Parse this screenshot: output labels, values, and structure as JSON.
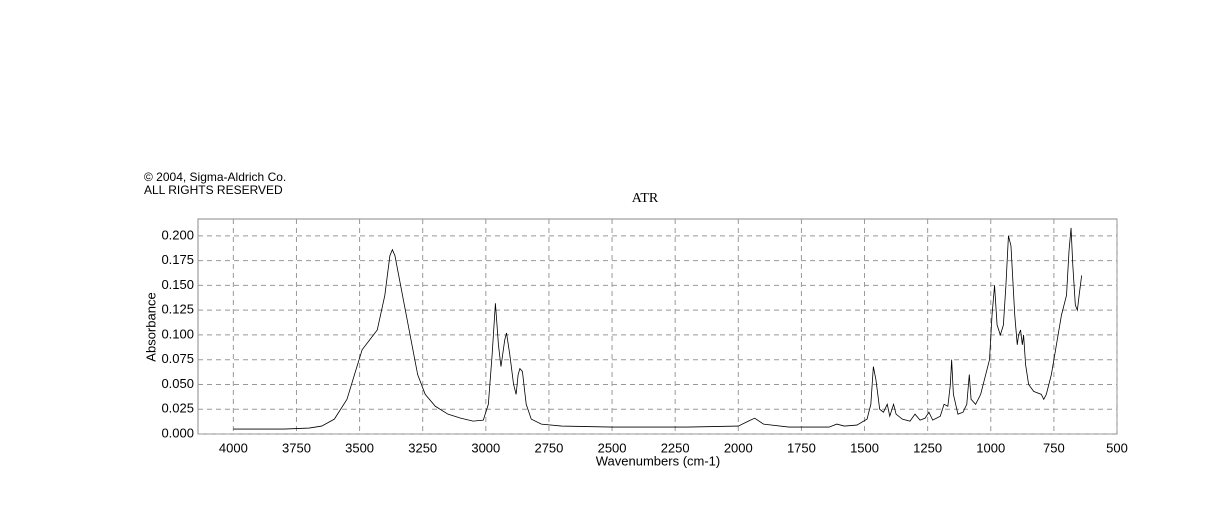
{
  "chart_data": {
    "type": "line",
    "notice": [
      "© 2004, Sigma-Aldrich Co.",
      "ALL RIGHTS RESERVED"
    ],
    "title": "ATR",
    "x_label": "Wavenumbers (cm-1)",
    "y_label": "Absorbance",
    "color": "#000000",
    "grid": true,
    "xlim": [
      4140,
      500
    ],
    "ylim": [
      0,
      0.217
    ],
    "xticks": [
      4000,
      3750,
      3500,
      3250,
      3000,
      2750,
      2500,
      2250,
      2000,
      1750,
      1500,
      1250,
      1000,
      750,
      500
    ],
    "yticks": [
      {
        "value": 0,
        "label": "0.000"
      },
      {
        "value": 0.025,
        "label": "0.025"
      },
      {
        "value": 0.05,
        "label": "0.050"
      },
      {
        "value": 0.075,
        "label": "0.075"
      },
      {
        "value": 0.1,
        "label": "0.100"
      },
      {
        "value": 0.125,
        "label": "0.125"
      },
      {
        "value": 0.15,
        "label": "0.150"
      },
      {
        "value": 0.175,
        "label": "0.175"
      },
      {
        "value": 0.2,
        "label": "0.200"
      }
    ],
    "x": [
      4000,
      3800,
      3700,
      3650,
      3600,
      3550,
      3520,
      3490,
      3460,
      3430,
      3400,
      3380,
      3370,
      3360,
      3330,
      3300,
      3270,
      3240,
      3200,
      3150,
      3100,
      3050,
      3010,
      2990,
      2975,
      2962,
      2950,
      2940,
      2925,
      2918,
      2905,
      2890,
      2880,
      2872,
      2865,
      2855,
      2840,
      2820,
      2780,
      2700,
      2500,
      2200,
      2000,
      1960,
      1935,
      1900,
      1800,
      1700,
      1640,
      1610,
      1580,
      1530,
      1490,
      1475,
      1465,
      1455,
      1440,
      1425,
      1410,
      1400,
      1385,
      1375,
      1350,
      1320,
      1300,
      1280,
      1260,
      1245,
      1230,
      1200,
      1185,
      1170,
      1160,
      1155,
      1148,
      1130,
      1110,
      1095,
      1085,
      1078,
      1060,
      1040,
      1020,
      1005,
      995,
      985,
      975,
      962,
      950,
      940,
      930,
      920,
      905,
      895,
      890,
      882,
      875,
      870,
      862,
      850,
      830,
      800,
      790,
      780,
      760,
      740,
      720,
      700,
      690,
      682,
      675,
      665,
      657,
      650,
      640
    ],
    "values": [
      0.005,
      0.005,
      0.006,
      0.008,
      0.015,
      0.035,
      0.06,
      0.085,
      0.095,
      0.105,
      0.14,
      0.18,
      0.186,
      0.18,
      0.14,
      0.1,
      0.06,
      0.04,
      0.028,
      0.02,
      0.016,
      0.013,
      0.014,
      0.03,
      0.08,
      0.132,
      0.09,
      0.068,
      0.095,
      0.102,
      0.08,
      0.05,
      0.04,
      0.06,
      0.066,
      0.063,
      0.03,
      0.015,
      0.01,
      0.008,
      0.007,
      0.007,
      0.008,
      0.013,
      0.016,
      0.01,
      0.007,
      0.007,
      0.007,
      0.01,
      0.008,
      0.009,
      0.015,
      0.03,
      0.068,
      0.055,
      0.025,
      0.022,
      0.03,
      0.018,
      0.03,
      0.02,
      0.015,
      0.013,
      0.02,
      0.014,
      0.016,
      0.022,
      0.014,
      0.018,
      0.03,
      0.028,
      0.05,
      0.075,
      0.04,
      0.02,
      0.022,
      0.03,
      0.06,
      0.035,
      0.03,
      0.04,
      0.06,
      0.075,
      0.12,
      0.15,
      0.11,
      0.1,
      0.11,
      0.15,
      0.2,
      0.19,
      0.12,
      0.09,
      0.1,
      0.105,
      0.09,
      0.1,
      0.07,
      0.05,
      0.043,
      0.04,
      0.035,
      0.04,
      0.06,
      0.09,
      0.12,
      0.14,
      0.185,
      0.208,
      0.17,
      0.13,
      0.125,
      0.14,
      0.16
    ]
  }
}
